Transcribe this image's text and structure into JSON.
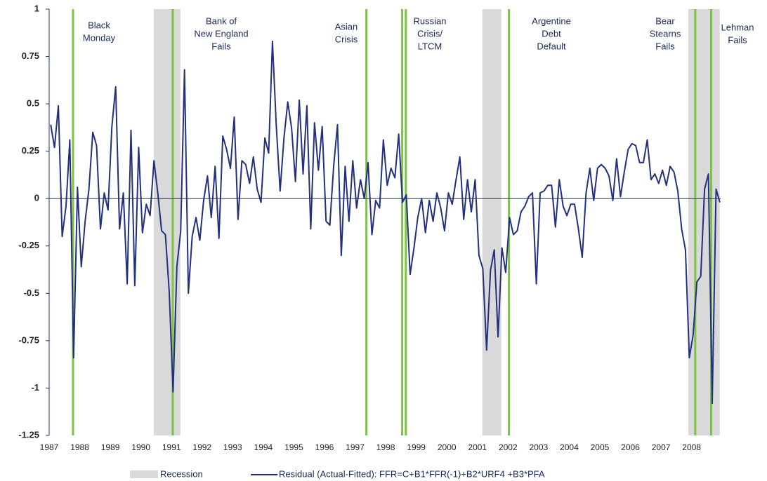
{
  "chart_data": {
    "type": "line",
    "xlim": [
      1987,
      2008.95
    ],
    "ylim": [
      -1.25,
      1
    ],
    "yticks": [
      1,
      0.75,
      0.5,
      0.25,
      0,
      -0.25,
      -0.5,
      -0.75,
      -1,
      -1.25
    ],
    "xticks": [
      1987,
      1988,
      1989,
      1990,
      1991,
      1992,
      1993,
      1994,
      1995,
      1996,
      1997,
      1998,
      1999,
      2000,
      2001,
      2002,
      2003,
      2004,
      2005,
      2006,
      2007,
      2008
    ],
    "recessions": {
      "name": "Recession",
      "color": "#d9d9d9",
      "ranges": [
        [
          1990.42,
          1991.29
        ],
        [
          2001.16,
          2001.78
        ],
        [
          2007.89,
          2008.92
        ]
      ]
    },
    "events": {
      "color": "#7dc242",
      "x": [
        1987.78,
        1991.04,
        1997.37,
        1998.54,
        1998.66,
        2002.03,
        2008.12,
        2008.64
      ]
    },
    "annotations": [
      {
        "lines": [
          "Black",
          "Monday"
        ]
      },
      {
        "lines": [
          "Bank of",
          "New England",
          "Fails"
        ]
      },
      {
        "lines": [
          "Asian",
          "Crisis"
        ]
      },
      {
        "lines": [
          "Russian",
          "Crisis/",
          "LTCM"
        ]
      },
      {
        "lines": [
          "Argentine",
          "Debt",
          "Default"
        ]
      },
      {
        "lines": [
          "Bear",
          "Stearns",
          "Fails"
        ]
      },
      {
        "lines": [
          "Lehman",
          "Fails"
        ]
      }
    ],
    "series": [
      {
        "name": "Residual (Actual-Fitted): FFR=C+B1*FFR(-1)+B2*URF4 +B3*PFA",
        "color": "#233080",
        "x": [
          1987.05,
          1987.175,
          1987.3,
          1987.425,
          1987.55,
          1987.675,
          1987.8,
          1987.925,
          1988.05,
          1988.175,
          1988.3,
          1988.425,
          1988.55,
          1988.675,
          1988.8,
          1988.925,
          1989.05,
          1989.175,
          1989.3,
          1989.425,
          1989.55,
          1989.675,
          1989.8,
          1989.925,
          1990.05,
          1990.175,
          1990.3,
          1990.425,
          1990.55,
          1990.675,
          1990.8,
          1990.925,
          1991.05,
          1991.175,
          1991.3,
          1991.425,
          1991.55,
          1991.675,
          1991.8,
          1991.925,
          1992.05,
          1992.175,
          1992.3,
          1992.425,
          1992.55,
          1992.675,
          1992.8,
          1992.925,
          1993.05,
          1993.175,
          1993.3,
          1993.425,
          1993.55,
          1993.675,
          1993.8,
          1993.925,
          1994.05,
          1994.175,
          1994.3,
          1994.425,
          1994.55,
          1994.675,
          1994.8,
          1994.925,
          1995.05,
          1995.175,
          1995.3,
          1995.425,
          1995.55,
          1995.675,
          1995.8,
          1995.925,
          1996.05,
          1996.175,
          1996.3,
          1996.425,
          1996.55,
          1996.675,
          1996.8,
          1996.925,
          1997.05,
          1997.175,
          1997.3,
          1997.425,
          1997.55,
          1997.675,
          1997.8,
          1997.925,
          1998.05,
          1998.175,
          1998.3,
          1998.425,
          1998.55,
          1998.675,
          1998.8,
          1998.925,
          1999.05,
          1999.175,
          1999.3,
          1999.425,
          1999.55,
          1999.675,
          1999.8,
          1999.925,
          2000.05,
          2000.175,
          2000.3,
          2000.425,
          2000.55,
          2000.675,
          2000.8,
          2000.925,
          2001.05,
          2001.175,
          2001.3,
          2001.425,
          2001.55,
          2001.675,
          2001.8,
          2001.925,
          2002.05,
          2002.175,
          2002.3,
          2002.425,
          2002.55,
          2002.675,
          2002.8,
          2002.925,
          2003.05,
          2003.175,
          2003.3,
          2003.425,
          2003.55,
          2003.675,
          2003.8,
          2003.925,
          2004.05,
          2004.175,
          2004.3,
          2004.425,
          2004.55,
          2004.675,
          2004.8,
          2004.925,
          2005.05,
          2005.175,
          2005.3,
          2005.425,
          2005.55,
          2005.675,
          2005.8,
          2005.925,
          2006.05,
          2006.175,
          2006.3,
          2006.425,
          2006.55,
          2006.675,
          2006.8,
          2006.925,
          2007.05,
          2007.175,
          2007.3,
          2007.425,
          2007.55,
          2007.675,
          2007.8,
          2007.925,
          2008.05,
          2008.175,
          2008.3,
          2008.425,
          2008.55,
          2008.675,
          2008.8,
          2008.925
        ],
        "values": [
          0.39,
          0.27,
          0.49,
          -0.2,
          -0.04,
          0.31,
          -0.84,
          0.06,
          -0.36,
          -0.12,
          0.05,
          0.35,
          0.28,
          -0.16,
          0.03,
          -0.06,
          0.38,
          0.59,
          -0.16,
          0.03,
          -0.45,
          0.36,
          -0.46,
          0.27,
          -0.18,
          -0.03,
          -0.09,
          0.2,
          0.03,
          -0.17,
          -0.19,
          -0.49,
          -1.02,
          -0.36,
          -0.17,
          0.68,
          -0.5,
          -0.2,
          -0.1,
          -0.22,
          -0.01,
          0.12,
          -0.1,
          0.17,
          -0.21,
          0.33,
          0.26,
          0.16,
          0.43,
          -0.11,
          0.2,
          0.18,
          0.08,
          0.22,
          0.05,
          -0.02,
          0.32,
          0.24,
          0.83,
          0.38,
          0.04,
          0.32,
          0.51,
          0.37,
          0.09,
          0.52,
          0.13,
          0.49,
          -0.16,
          0.4,
          0.15,
          0.38,
          -0.12,
          -0.14,
          0.17,
          0.39,
          -0.3,
          0.17,
          -0.12,
          0.2,
          -0.05,
          0.1,
          0,
          0.19,
          -0.19,
          -0.01,
          -0.05,
          0.31,
          0.07,
          0.16,
          0.11,
          0.34,
          -0.02,
          0.02,
          -0.4,
          -0.26,
          -0.1,
          0,
          -0.18,
          -0.01,
          -0.12,
          0.03,
          -0.05,
          -0.17,
          0.03,
          -0.03,
          0.1,
          0.22,
          -0.11,
          0.1,
          -0.07,
          0.1,
          -0.3,
          -0.37,
          -0.8,
          -0.38,
          -0.27,
          -0.73,
          -0.26,
          -0.39,
          -0.1,
          -0.19,
          -0.17,
          -0.07,
          -0.04,
          0.01,
          0.03,
          -0.45,
          0.03,
          0.04,
          0.07,
          0.07,
          -0.15,
          0.1,
          -0.04,
          -0.09,
          -0.03,
          -0.03,
          -0.16,
          -0.31,
          0.03,
          0.16,
          -0.01,
          0.16,
          0.18,
          0.16,
          0.12,
          -0.01,
          0.21,
          0.01,
          0.14,
          0.26,
          0.29,
          0.28,
          0.19,
          0.19,
          0.31,
          0.1,
          0.13,
          0.08,
          0.15,
          0.07,
          0.17,
          0.14,
          0.04,
          -0.16,
          -0.27,
          -0.84,
          -0.72,
          -0.44,
          -0.41,
          0.05,
          0.13,
          -1.08,
          0.05,
          -0.02
        ]
      }
    ]
  }
}
